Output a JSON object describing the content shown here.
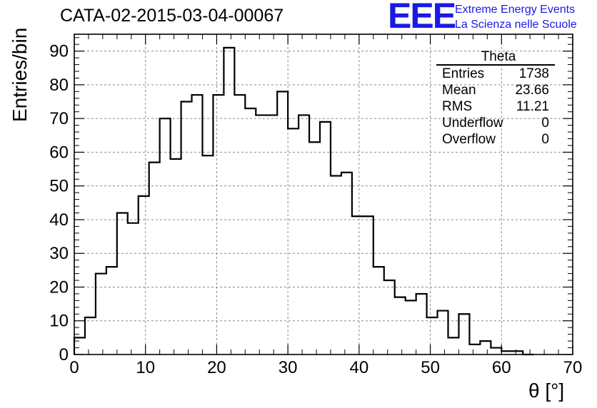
{
  "title": "CATA-02-2015-03-04-00067",
  "logo": {
    "mark": "EEE",
    "line1": "Extreme Energy Events",
    "line2": "La Scienza nelle Scuole"
  },
  "stats_box": {
    "name": "Theta",
    "rows": [
      {
        "label": "Entries",
        "value": "1738"
      },
      {
        "label": "Mean",
        "value": "23.66"
      },
      {
        "label": "RMS",
        "value": "11.21"
      },
      {
        "label": "Underflow",
        "value": "0"
      },
      {
        "label": "Overflow",
        "value": "0"
      }
    ]
  },
  "chart_data": {
    "type": "bar",
    "style": "step-histogram",
    "title": "CATA-02-2015-03-04-00067",
    "xlabel": "θ [°]",
    "ylabel": "Entries/bin",
    "xlim": [
      0,
      70
    ],
    "ylim": [
      0,
      95
    ],
    "bin_width": 1.5,
    "x_ticks": [
      0,
      10,
      20,
      30,
      40,
      50,
      60,
      70
    ],
    "y_ticks": [
      0,
      10,
      20,
      30,
      40,
      50,
      60,
      70,
      80,
      90
    ],
    "grid": true,
    "line_color": "#000000",
    "values": [
      5,
      11,
      24,
      26,
      42,
      39,
      47,
      57,
      70,
      58,
      75,
      77,
      59,
      77,
      91,
      77,
      73,
      71,
      71,
      78,
      67,
      71,
      63,
      69,
      53,
      54,
      41,
      41,
      26,
      22,
      17,
      16,
      18,
      11,
      13,
      5,
      12,
      3,
      4,
      2,
      1,
      1,
      0
    ]
  }
}
